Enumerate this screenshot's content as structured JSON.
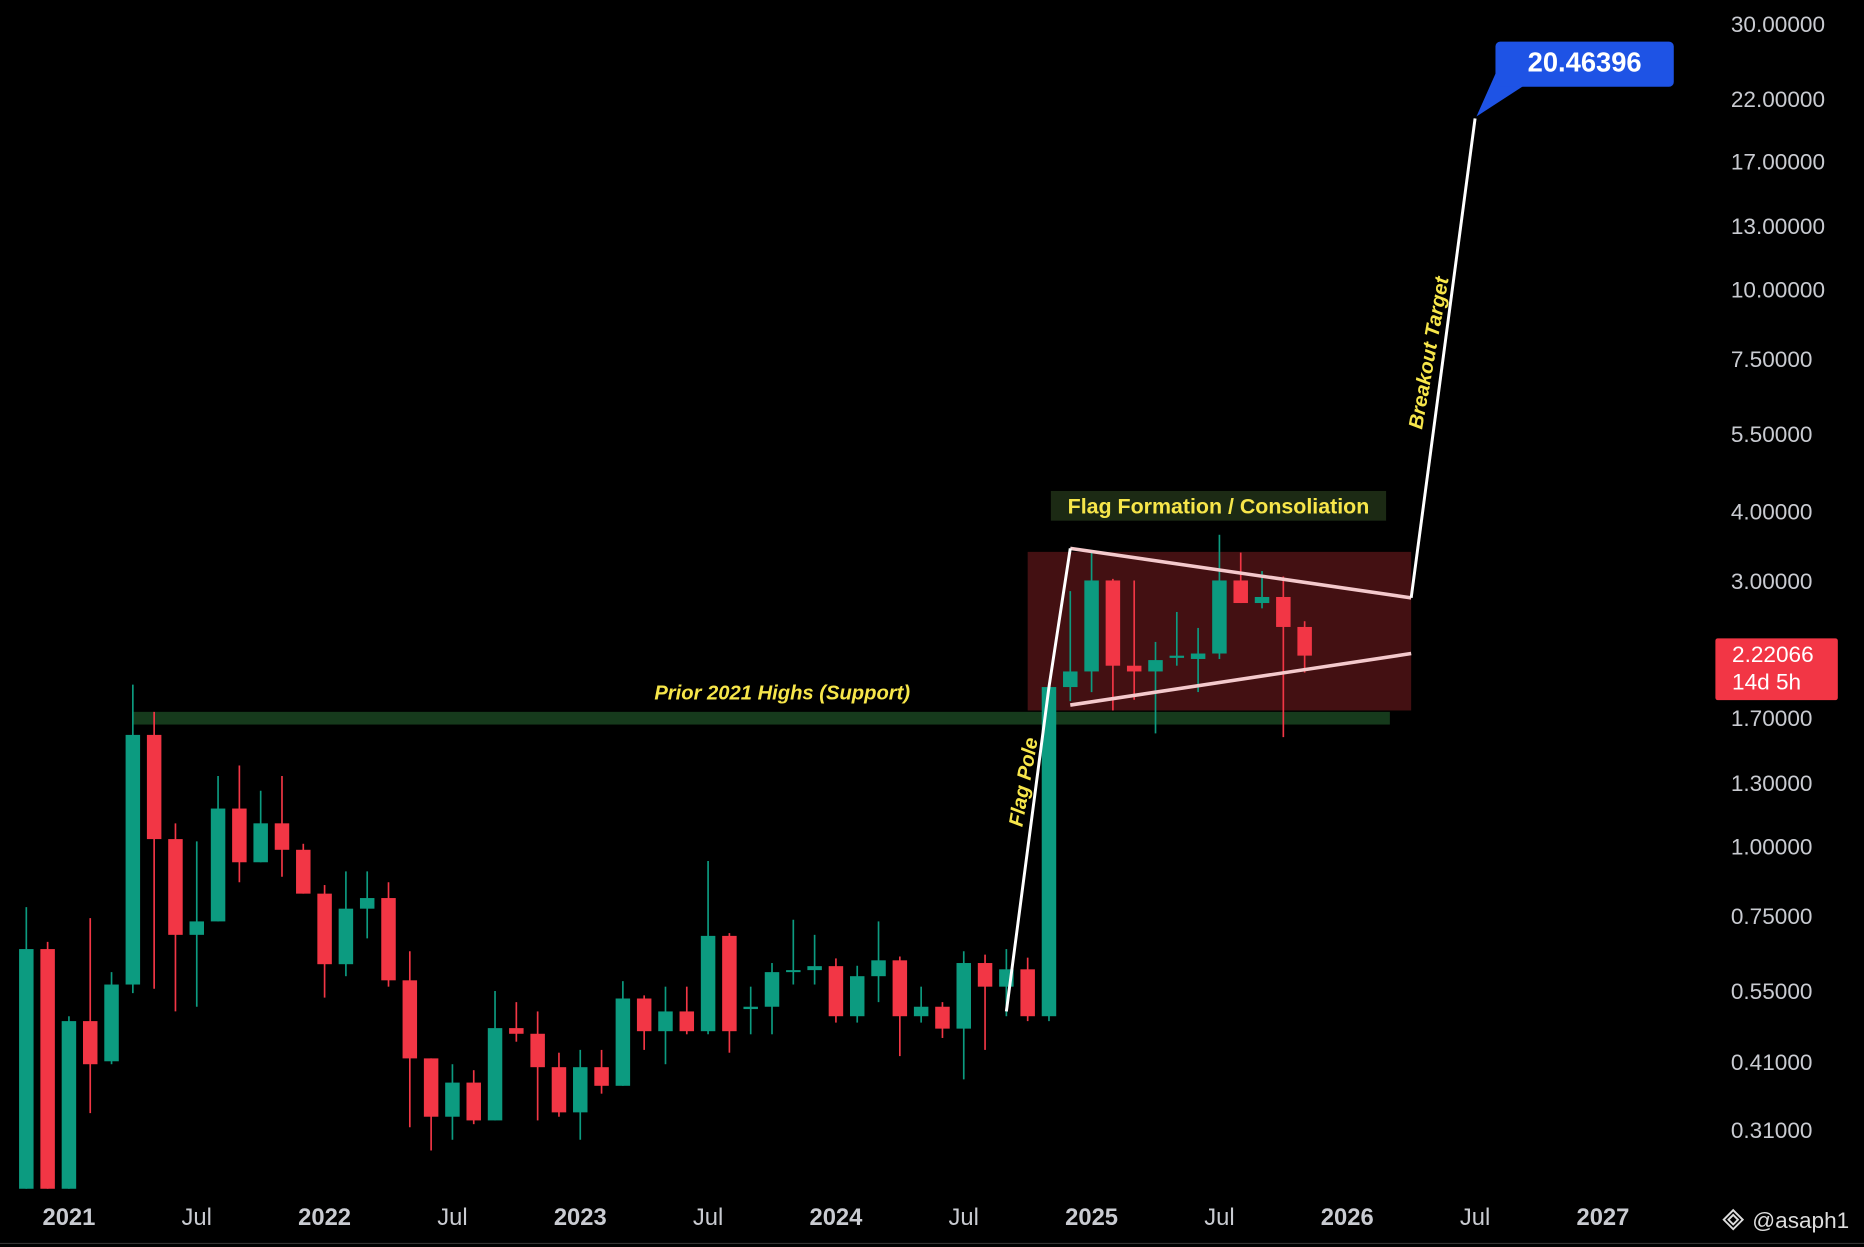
{
  "chart_data": {
    "type": "candlestick",
    "up_color": "#0c9b80",
    "down_color": "#f23645",
    "log_scale": true,
    "x": [
      "2020-11",
      "2020-12",
      "2021-01",
      "2021-02",
      "2021-03",
      "2021-04",
      "2021-05",
      "2021-06",
      "2021-07",
      "2021-08",
      "2021-09",
      "2021-10",
      "2021-11",
      "2021-12",
      "2022-01",
      "2022-02",
      "2022-03",
      "2022-04",
      "2022-05",
      "2022-06",
      "2022-07",
      "2022-08",
      "2022-09",
      "2022-10",
      "2022-11",
      "2022-12",
      "2023-01",
      "2023-02",
      "2023-03",
      "2023-04",
      "2023-05",
      "2023-06",
      "2023-07",
      "2023-08",
      "2023-09",
      "2023-10",
      "2023-11",
      "2023-12",
      "2024-01",
      "2024-02",
      "2024-03",
      "2024-04",
      "2024-05",
      "2024-06",
      "2024-07",
      "2024-08",
      "2024-09",
      "2024-10",
      "2024-11",
      "2024-12",
      "2025-01",
      "2025-02",
      "2025-03",
      "2025-04",
      "2025-05",
      "2025-06",
      "2025-07",
      "2025-08",
      "2025-09",
      "2025-10",
      "2025-11"
    ],
    "open": [
      0.245,
      0.66,
      0.245,
      0.49,
      0.415,
      0.57,
      1.6,
      1.04,
      0.7,
      0.74,
      1.18,
      0.945,
      1.11,
      0.995,
      0.83,
      0.62,
      0.78,
      0.815,
      0.58,
      0.42,
      0.33,
      0.38,
      0.325,
      0.476,
      0.465,
      0.405,
      0.336,
      0.405,
      0.375,
      0.538,
      0.47,
      0.51,
      0.47,
      0.697,
      0.515,
      0.52,
      0.6,
      0.605,
      0.615,
      0.5,
      0.59,
      0.63,
      0.5,
      0.52,
      0.475,
      0.623,
      0.565,
      0.607,
      0.5,
      1.95,
      2.08,
      3.03,
      2.13,
      2.08,
      2.2,
      2.19,
      2.24,
      3.03,
      2.76,
      2.83,
      2.5
    ],
    "high": [
      0.785,
      0.68,
      0.5,
      0.75,
      0.6,
      1.97,
      1.76,
      1.11,
      1.03,
      1.35,
      1.41,
      1.27,
      1.35,
      1.02,
      0.86,
      0.91,
      0.91,
      0.87,
      0.654,
      0.42,
      0.41,
      0.4,
      0.555,
      0.53,
      0.51,
      0.43,
      0.435,
      0.435,
      0.578,
      0.545,
      0.565,
      0.565,
      0.95,
      0.705,
      0.565,
      0.623,
      0.745,
      0.7,
      0.635,
      0.616,
      0.74,
      0.64,
      0.565,
      0.53,
      0.654,
      0.645,
      0.66,
      0.637,
      1.95,
      2.9,
      3.42,
      3.05,
      3.03,
      2.35,
      2.66,
      2.49,
      3.66,
      3.4,
      3.15,
      3.08,
      2.56
    ],
    "low": [
      0.245,
      0.245,
      0.245,
      0.335,
      0.41,
      0.55,
      0.56,
      0.51,
      0.52,
      0.74,
      0.87,
      0.945,
      0.89,
      0.83,
      0.54,
      0.59,
      0.69,
      0.565,
      0.316,
      0.287,
      0.3,
      0.32,
      0.325,
      0.45,
      0.325,
      0.33,
      0.3,
      0.363,
      0.375,
      0.435,
      0.41,
      0.464,
      0.464,
      0.43,
      0.464,
      0.464,
      0.57,
      0.57,
      0.487,
      0.487,
      0.53,
      0.424,
      0.487,
      0.457,
      0.385,
      0.435,
      0.5,
      0.49,
      0.49,
      1.84,
      1.91,
      1.77,
      1.85,
      1.61,
      2.13,
      1.91,
      2.19,
      2.76,
      2.7,
      1.585,
      2.07
    ],
    "close": [
      0.66,
      0.245,
      0.49,
      0.41,
      0.57,
      1.6,
      1.04,
      0.7,
      0.74,
      1.18,
      0.945,
      1.11,
      0.995,
      0.83,
      0.62,
      0.78,
      0.815,
      0.58,
      0.42,
      0.33,
      0.38,
      0.325,
      0.476,
      0.465,
      0.405,
      0.336,
      0.405,
      0.375,
      0.538,
      0.47,
      0.51,
      0.47,
      0.697,
      0.47,
      0.52,
      0.6,
      0.605,
      0.615,
      0.5,
      0.59,
      0.63,
      0.5,
      0.52,
      0.475,
      0.623,
      0.565,
      0.607,
      0.5,
      1.95,
      2.08,
      3.03,
      2.13,
      2.08,
      2.18,
      2.22,
      2.24,
      3.03,
      2.76,
      2.83,
      2.5,
      2.22066
    ],
    "countdown": "14d 5h",
    "xlim": [
      "2020-10",
      "2027-06"
    ],
    "xticks": [
      {
        "value": "2021-01",
        "label": "2021"
      },
      {
        "value": "2021-07",
        "label": "Jul"
      },
      {
        "value": "2022-01",
        "label": "2022"
      },
      {
        "value": "2022-07",
        "label": "Jul"
      },
      {
        "value": "2023-01",
        "label": "2023"
      },
      {
        "value": "2023-07",
        "label": "Jul"
      },
      {
        "value": "2024-01",
        "label": "2024"
      },
      {
        "value": "2024-07",
        "label": "Jul"
      },
      {
        "value": "2025-01",
        "label": "2025"
      },
      {
        "value": "2025-07",
        "label": "Jul"
      },
      {
        "value": "2026-01",
        "label": "2026"
      },
      {
        "value": "2026-07",
        "label": "Jul"
      },
      {
        "value": "2027-01",
        "label": "2027"
      }
    ],
    "ylim": [
      0.245,
      33.4
    ],
    "yticks": [
      {
        "value": 30,
        "label": "30.00000"
      },
      {
        "value": 22,
        "label": "22.00000"
      },
      {
        "value": 17,
        "label": "17.00000"
      },
      {
        "value": 13,
        "label": "13.00000"
      },
      {
        "value": 10,
        "label": "10.00000"
      },
      {
        "value": 7.5,
        "label": "7.50000"
      },
      {
        "value": 5.5,
        "label": "5.50000"
      },
      {
        "value": 4,
        "label": "4.00000"
      },
      {
        "value": 3,
        "label": "3.00000"
      },
      {
        "value": 1.7,
        "label": "1.70000"
      },
      {
        "value": 1.3,
        "label": "1.30000"
      },
      {
        "value": 1,
        "label": "1.00000"
      },
      {
        "value": 0.75,
        "label": "0.75000"
      },
      {
        "value": 0.55,
        "label": "0.55000"
      },
      {
        "value": 0.41,
        "label": "0.41000"
      },
      {
        "value": 0.31,
        "label": "0.31000"
      }
    ],
    "support_zone": {
      "label": "Prior 2021 Highs (Support)",
      "x": [
        "2021-04",
        "2026-03"
      ],
      "y": [
        1.67,
        1.76
      ],
      "color": "#163a1c"
    },
    "consolidation_box": {
      "x": [
        "2024-10",
        "2026-04"
      ],
      "y": [
        1.77,
        3.41
      ],
      "color": "#5a1518"
    },
    "flag": {
      "label": "Flag Formation / Consoliation",
      "upper": {
        "x": [
          "2024-12",
          "2026-04"
        ],
        "y": [
          3.46,
          2.82
        ]
      },
      "lower": {
        "x": [
          "2024-12",
          "2026-04"
        ],
        "y": [
          1.81,
          2.24
        ]
      }
    },
    "flag_pole": {
      "label": "Flag Pole",
      "x": [
        "2024-09",
        "2024-11",
        "2024-12"
      ],
      "y": [
        0.51,
        1.95,
        3.46
      ]
    },
    "breakout": {
      "label": "Breakout Target",
      "x": [
        "2026-04",
        "2026-07"
      ],
      "y": [
        2.82,
        20.46396
      ]
    },
    "watermark": "@asaph1"
  }
}
